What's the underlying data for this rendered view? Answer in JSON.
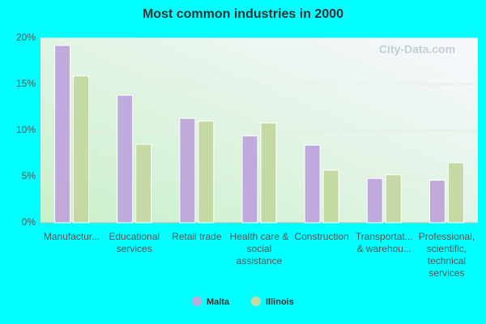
{
  "chart_data": {
    "type": "bar",
    "title": "Most common industries in 2000",
    "watermark": "City-Data.com",
    "categories": [
      "Manufactur...",
      "Educational services",
      "Retail trade",
      "Health care & social assistance",
      "Construction",
      "Transportat... & warehou...",
      "Professional, scientific, technical services"
    ],
    "series": [
      {
        "name": "Malta",
        "color": "#c0a9db",
        "values": [
          19.2,
          13.8,
          11.3,
          9.4,
          8.4,
          4.8,
          4.6
        ]
      },
      {
        "name": "Illinois",
        "color": "#c5d9a5",
        "values": [
          15.9,
          8.5,
          11.0,
          10.8,
          5.7,
          5.2,
          6.5
        ]
      }
    ],
    "ylim": [
      0,
      20
    ],
    "yticks": [
      {
        "value": 0,
        "label": "0%"
      },
      {
        "value": 5,
        "label": "5%"
      },
      {
        "value": 10,
        "label": "10%"
      },
      {
        "value": 15,
        "label": "15%"
      },
      {
        "value": 20,
        "label": "20%"
      }
    ],
    "grid": true,
    "legend": "bottom"
  }
}
